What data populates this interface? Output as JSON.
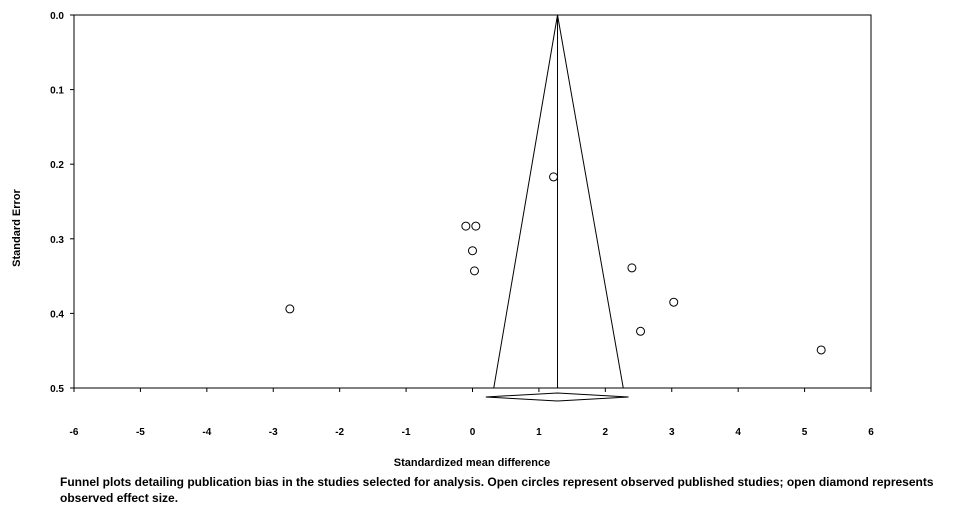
{
  "chart_data": {
    "type": "scatter",
    "title": "",
    "xlabel": "Standardized mean difference",
    "ylabel": "Standard Error",
    "xlim": [
      -6,
      6
    ],
    "ylim": [
      0.5,
      0.0
    ],
    "y_inverted": true,
    "x_ticks": [
      -6,
      -5,
      -4,
      -3,
      -2,
      -1,
      0,
      1,
      2,
      3,
      4,
      5,
      6
    ],
    "y_ticks": [
      "0.0",
      "0.1",
      "0.2",
      "0.3",
      "0.4",
      "0.5"
    ],
    "grid": false,
    "series": [
      {
        "marker": "open-circle",
        "points": [
          {
            "x": 1.22,
            "y": 0.217
          },
          {
            "x": -0.1,
            "y": 0.283
          },
          {
            "x": 0.05,
            "y": 0.283
          },
          {
            "x": 0.0,
            "y": 0.316
          },
          {
            "x": 0.03,
            "y": 0.343
          },
          {
            "x": -2.75,
            "y": 0.394
          },
          {
            "x": 2.4,
            "y": 0.339
          },
          {
            "x": 3.03,
            "y": 0.385
          },
          {
            "x": 2.53,
            "y": 0.424
          },
          {
            "x": 5.25,
            "y": 0.449
          }
        ]
      }
    ],
    "funnel": {
      "center": 1.28,
      "apex_se": 0.0,
      "base_se": 0.5,
      "base_left": 0.32,
      "base_right": 2.27
    },
    "summary_diamond": {
      "center": 1.28,
      "lower": 0.2,
      "upper": 2.35,
      "y": 0.512
    }
  },
  "caption": "Funnel plots detailing publication bias in the studies selected for analysis. Open circles represent observed published studies; open diamond represents observed effect size."
}
